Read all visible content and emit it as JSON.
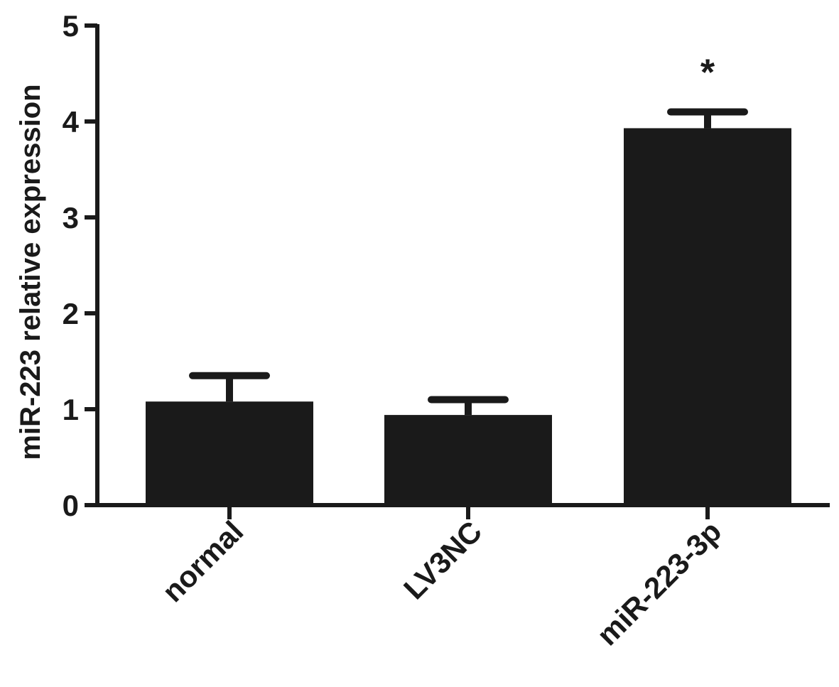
{
  "chart_data": {
    "type": "bar",
    "title": "",
    "xlabel": "",
    "ylabel": "miR-223 relative expression",
    "ylim": [
      0,
      5
    ],
    "yticks": [
      0,
      1,
      2,
      3,
      4,
      5
    ],
    "grid": false,
    "categories": [
      "normal",
      "LV3NC",
      "miR-223-3p"
    ],
    "values": [
      1.08,
      0.94,
      3.93
    ],
    "error_upper": [
      0.27,
      0.16,
      0.17
    ],
    "annotations": [
      "",
      "",
      "*"
    ],
    "bar_color": "#1a1a1a",
    "axis_color": "#1a1a1a"
  }
}
